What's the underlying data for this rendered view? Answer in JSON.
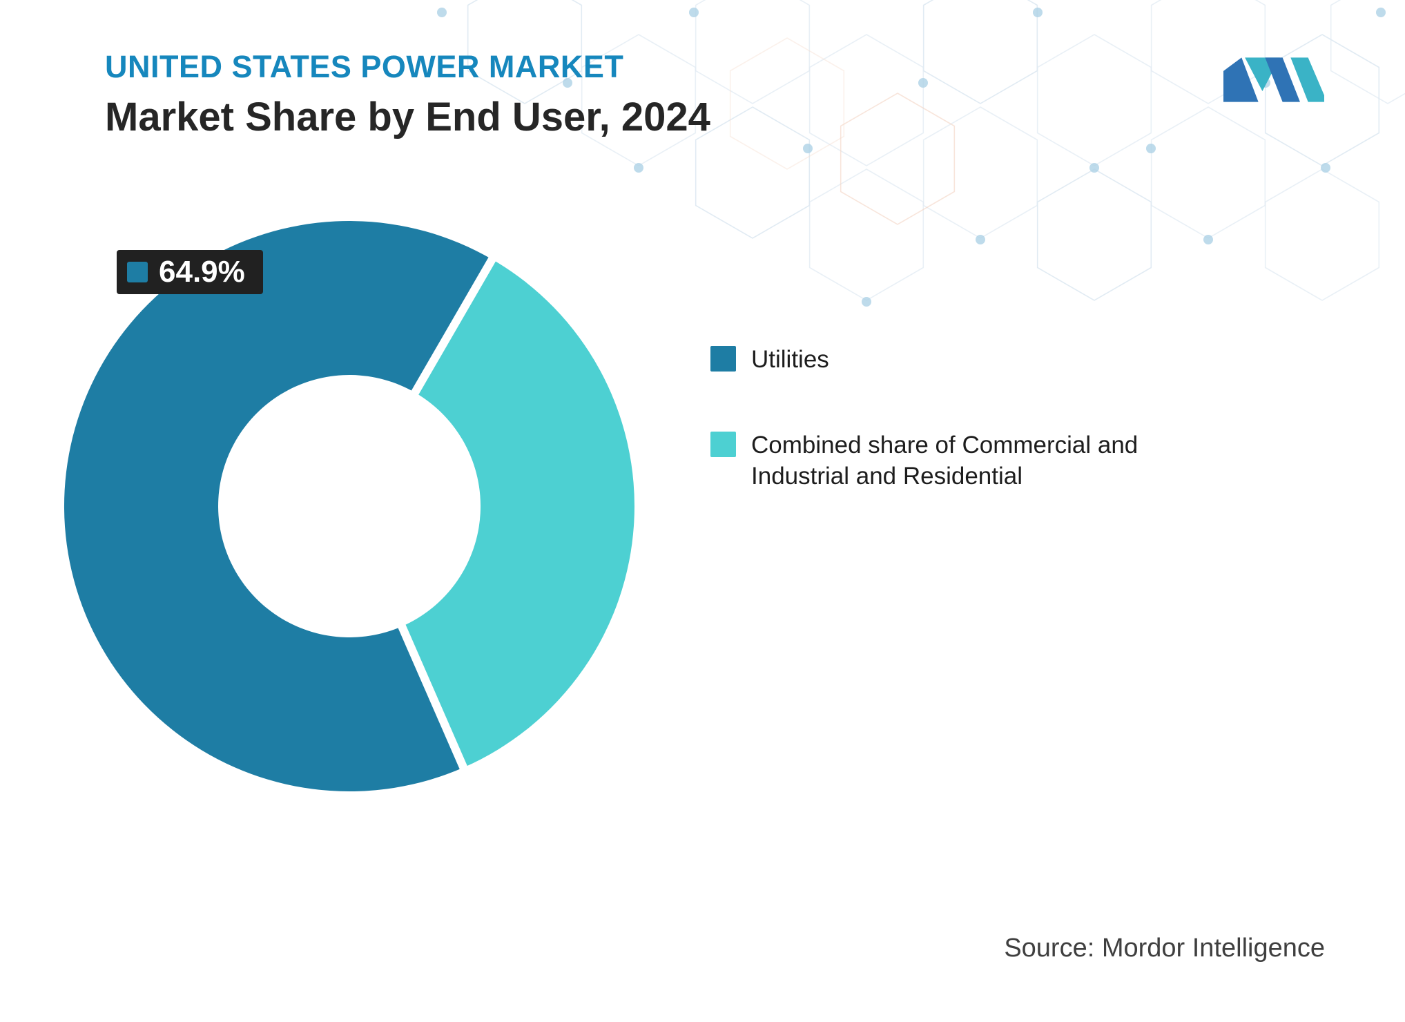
{
  "header": {
    "kicker": "UNITED STATES POWER MARKET",
    "title": "Market Share by End User, 2024"
  },
  "chart_data": {
    "type": "pie",
    "subtype": "donut",
    "title": "Market Share by End User, 2024",
    "unit": "%",
    "rotation_deg": 156.4,
    "inner_radius_ratio": 0.46,
    "legend_position": "right",
    "segments": [
      {
        "label": "Utilities",
        "value": 64.9,
        "color": "#1e7da4"
      },
      {
        "label": "Combined share of Commercial and Industrial and Residential",
        "value": 35.1,
        "color": "#4dd0d2"
      }
    ],
    "callout": {
      "text": "64.9%",
      "series": "Utilities",
      "color": "#1e7da4"
    }
  },
  "legend": {
    "items": [
      {
        "label": "Utilities",
        "color": "#1e7da4"
      },
      {
        "label": "Combined share of Commercial and Industrial and Residential",
        "color": "#4dd0d2"
      }
    ]
  },
  "footer": {
    "source": "Source: Mordor Intelligence"
  },
  "colors": {
    "accent_blue": "#1687bd",
    "utilities_segment": "#1e7da4",
    "combined_segment": "#4dd0d2",
    "callout_background": "#212121",
    "title_text": "#262626",
    "logo_blue": "#2f73b5",
    "logo_teal": "#3ab3c6"
  }
}
